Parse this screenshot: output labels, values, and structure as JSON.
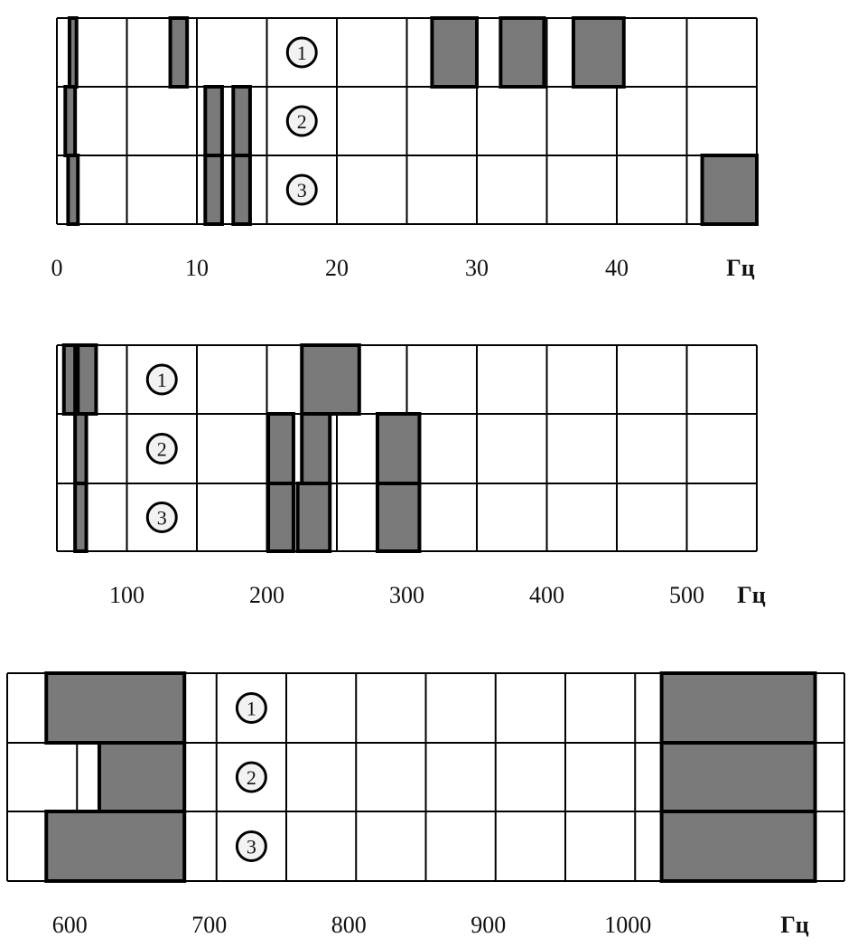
{
  "chart_data": [
    {
      "type": "bar",
      "orientation": "horizontal-ranges",
      "unit_label": "Гц",
      "xlim": [
        0,
        50
      ],
      "grid_step": 5,
      "tick_labels": [
        "0",
        "10",
        "20",
        "30",
        "40"
      ],
      "ticks": [
        0,
        10,
        20,
        30,
        40
      ],
      "label_column": [
        15,
        20
      ],
      "rows": [
        {
          "name": "1",
          "bands": [
            [
              0.9,
              1.4
            ],
            [
              8.1,
              9.3
            ],
            [
              26.8,
              30
            ],
            [
              31.7,
              34.8
            ],
            [
              36.9,
              40.5
            ]
          ]
        },
        {
          "name": "2",
          "bands": [
            [
              0.6,
              1.3
            ],
            [
              10.6,
              11.8
            ],
            [
              12.6,
              13.8
            ]
          ]
        },
        {
          "name": "3",
          "bands": [
            [
              0.8,
              1.5
            ],
            [
              10.6,
              11.8
            ],
            [
              12.6,
              13.8
            ],
            [
              46.1,
              50
            ]
          ]
        }
      ]
    },
    {
      "type": "bar",
      "orientation": "horizontal-ranges",
      "unit_label": "Гц",
      "xlim": [
        50,
        550
      ],
      "grid_step": 50,
      "tick_labels": [
        "100",
        "200",
        "300",
        "400",
        "500"
      ],
      "ticks": [
        100,
        200,
        300,
        400,
        500
      ],
      "label_column": [
        100,
        150
      ],
      "rows": [
        {
          "name": "1",
          "bands": [
            [
              55,
              63
            ],
            [
              65,
              78
            ],
            [
              225,
              266
            ]
          ]
        },
        {
          "name": "2",
          "bands": [
            [
              63,
              71
            ],
            [
              201,
              219
            ],
            [
              225,
              245
            ],
            [
              279,
              309
            ]
          ]
        },
        {
          "name": "3",
          "bands": [
            [
              63,
              71
            ],
            [
              201,
              219
            ],
            [
              222,
              245
            ],
            [
              279,
              309
            ]
          ]
        }
      ]
    },
    {
      "type": "bar",
      "orientation": "horizontal-ranges",
      "unit_label": "Гц",
      "xlim": [
        550,
        1150
      ],
      "grid_step": 50,
      "tick_labels": [
        "600",
        "700",
        "800",
        "900",
        "1000"
      ],
      "ticks": [
        600,
        700,
        800,
        900,
        1000
      ],
      "label_column": [
        700,
        750
      ],
      "rows": [
        {
          "name": "1",
          "bands": [
            [
              578,
              677
            ],
            [
              1019,
              1129
            ]
          ]
        },
        {
          "name": "2",
          "bands": [
            [
              616,
              677
            ],
            [
              1019,
              1129
            ]
          ]
        },
        {
          "name": "3",
          "bands": [
            [
              578,
              677
            ],
            [
              1019,
              1129
            ]
          ]
        }
      ]
    }
  ],
  "colors": {
    "band_fill": "#7a7a7a",
    "band_stroke": "#000000",
    "grid": "#000000"
  }
}
